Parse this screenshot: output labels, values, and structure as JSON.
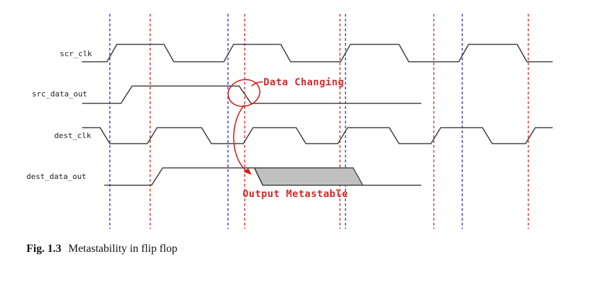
{
  "signals": {
    "scr_clk": "scr_clk",
    "src_data_out": "src_data_out",
    "dest_clk": "dest_clk",
    "dest_data_out": "dest_data_out"
  },
  "annotations": {
    "data_changing": "Data Changing",
    "output_metastable": "Output Metastable"
  },
  "caption": {
    "number": "Fig. 1.3",
    "text": "Metastability in flip flop"
  },
  "colors": {
    "source_edge_lines": "#2a2ad0",
    "dest_edge_lines": "#e02020",
    "annotation": "#d42a2a",
    "metastable_fill": "#c0c0c0"
  }
}
